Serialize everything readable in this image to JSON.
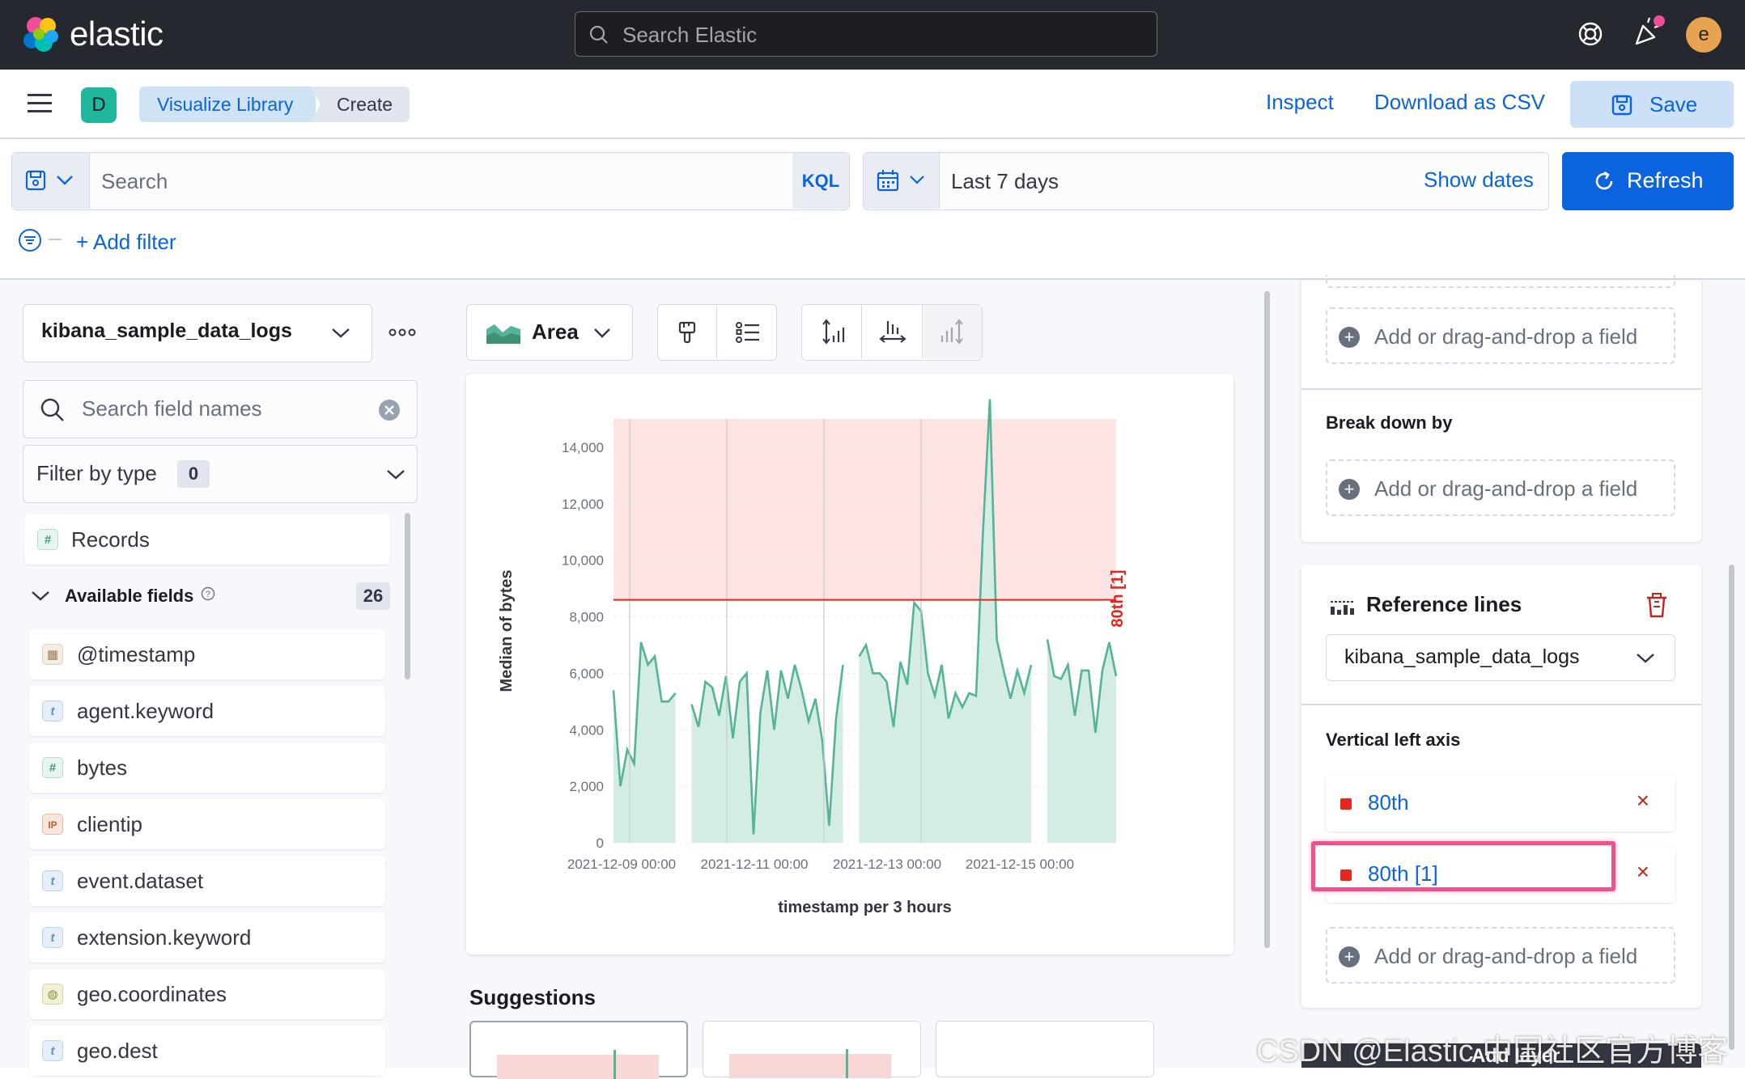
{
  "header": {
    "logo_text": "elastic",
    "search_placeholder": "Search Elastic",
    "avatar_initial": "e"
  },
  "subnav": {
    "space_initial": "D",
    "breadcrumbs": [
      "Visualize Library",
      "Create"
    ],
    "inspect": "Inspect",
    "download_csv": "Download as CSV",
    "save": "Save"
  },
  "query": {
    "placeholder": "Search",
    "language": "KQL",
    "date_range": "Last 7 days",
    "show_dates": "Show dates",
    "refresh": "Refresh",
    "add_filter": "+ Add filter"
  },
  "datasource": {
    "index_pattern": "kibana_sample_data_logs",
    "search_placeholder": "Search field names",
    "filter_by_type": "Filter by type",
    "filter_count": "0",
    "records": "Records",
    "available_fields": "Available fields",
    "available_count": "26",
    "fields": [
      {
        "name": "@timestamp",
        "type": "date"
      },
      {
        "name": "agent.keyword",
        "type": "t"
      },
      {
        "name": "bytes",
        "type": "#"
      },
      {
        "name": "clientip",
        "type": "IP"
      },
      {
        "name": "event.dataset",
        "type": "t"
      },
      {
        "name": "extension.keyword",
        "type": "t"
      },
      {
        "name": "geo.coordinates",
        "type": "geo"
      },
      {
        "name": "geo.dest",
        "type": "t"
      }
    ]
  },
  "toolbar": {
    "chart_type": "Area"
  },
  "chart_data": {
    "type": "area",
    "ylabel": "Median of bytes",
    "xlabel": "timestamp per 3 hours",
    "ylim": [
      0,
      15000
    ],
    "y_ticks": [
      "0",
      "2,000",
      "4,000",
      "6,000",
      "8,000",
      "10,000",
      "12,000",
      "14,000"
    ],
    "x_ticks": [
      "2021-12-09 00:00",
      "2021-12-11 00:00",
      "2021-12-13 00:00",
      "2021-12-15 00:00"
    ],
    "reference_line": {
      "label": "80th [1]",
      "value": 8600,
      "color": "#e7261f",
      "shaded_above": true
    },
    "area_color": "#54b399",
    "segments": [
      [
        5400,
        2000,
        3300,
        2800,
        7100,
        6300,
        6600,
        5000,
        5000,
        5300
      ],
      [
        4900,
        4100,
        5700,
        5500,
        4500,
        5900,
        3700,
        5700,
        6000,
        300,
        4600,
        6100,
        4000,
        6100,
        5100,
        6300,
        5400,
        4300,
        5100,
        3600,
        600,
        4400,
        6300
      ],
      [
        6600,
        7000,
        6000,
        6000,
        5700,
        4100,
        6400,
        5600,
        8500,
        8200,
        6000,
        5200,
        6300,
        4400,
        5300,
        4800,
        5300,
        5200,
        11000,
        15700,
        7200,
        6100,
        5100,
        6100,
        5300,
        6300
      ],
      [
        7200,
        5900,
        5800,
        6300,
        4500,
        6100,
        6100,
        3900,
        6100,
        7100,
        5900
      ]
    ]
  },
  "config": {
    "add_field": "Add or drag-and-drop a field",
    "break_down_by": "Break down by",
    "reference_lines_title": "Reference lines",
    "ref_index": "kibana_sample_data_logs",
    "vertical_left_axis": "Vertical left axis",
    "ref_items": [
      "80th",
      "80th [1]"
    ],
    "add_layer": "Add layer"
  },
  "suggestions": {
    "title": "Suggestions"
  },
  "watermark": "CSDN @Elastic 中国社区官方博客"
}
